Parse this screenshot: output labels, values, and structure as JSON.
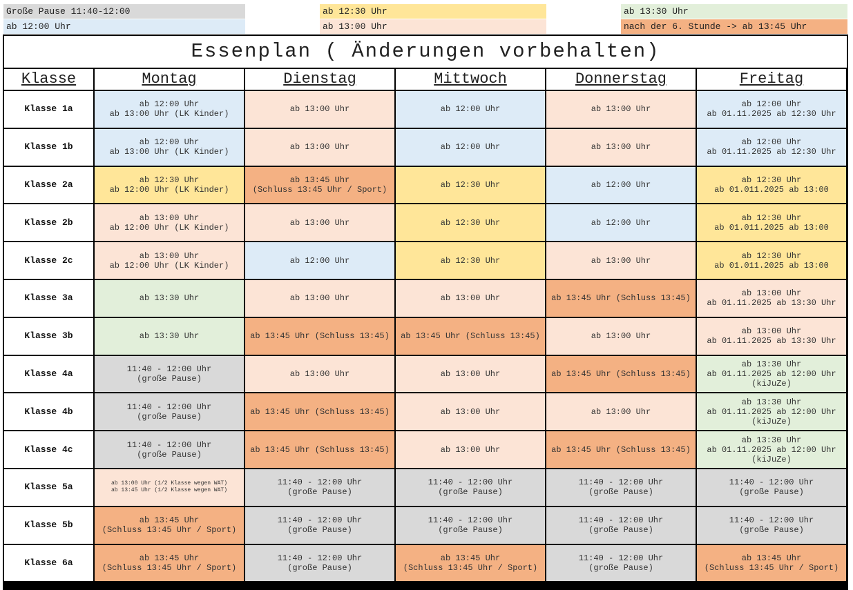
{
  "legend": [
    {
      "label": "Große Pause 11:40-12:00",
      "color": "#d9d9d9"
    },
    {
      "label": "ab 12:30 Uhr",
      "color": "#ffe699"
    },
    {
      "label": "ab 13:30 Uhr",
      "color": "#e2efda"
    },
    {
      "label": "ab 12:00 Uhr",
      "color": "#ddebf7"
    },
    {
      "label": "ab 13:00 Uhr",
      "color": "#fce4d6"
    },
    {
      "label": "nach der 6. Stunde -> ab 13:45 Uhr",
      "color": "#f4b183"
    }
  ],
  "table": {
    "title": "Essenplan ( Änderungen vorbehalten)",
    "header": [
      "Klasse",
      "Montag",
      "Dienstag",
      "Mittwoch",
      "Donnerstag",
      "Freitag"
    ],
    "rows": [
      {
        "klasse": "Klasse 1a",
        "cells": [
          {
            "lines": [
              "ab 12:00 Uhr",
              "ab 13:00 Uhr (LK Kinder)"
            ],
            "color": "#ddebf7"
          },
          {
            "lines": [
              "ab 13:00 Uhr"
            ],
            "color": "#fce4d6"
          },
          {
            "lines": [
              "ab 12:00 Uhr"
            ],
            "color": "#ddebf7"
          },
          {
            "lines": [
              "ab 13:00 Uhr"
            ],
            "color": "#fce4d6"
          },
          {
            "lines": [
              "ab 12:00 Uhr",
              "ab 01.11.2025 ab 12:30 Uhr"
            ],
            "color": "#ddebf7"
          }
        ]
      },
      {
        "klasse": "Klasse 1b",
        "cells": [
          {
            "lines": [
              "ab 12:00 Uhr",
              "ab 13:00 Uhr (LK Kinder)"
            ],
            "color": "#ddebf7"
          },
          {
            "lines": [
              "ab 13:00 Uhr"
            ],
            "color": "#fce4d6"
          },
          {
            "lines": [
              "ab 12:00 Uhr"
            ],
            "color": "#ddebf7"
          },
          {
            "lines": [
              "ab 13:00 Uhr"
            ],
            "color": "#fce4d6"
          },
          {
            "lines": [
              "ab 12:00 Uhr",
              "ab 01.11.2025 ab 12:30 Uhr"
            ],
            "color": "#ddebf7"
          }
        ]
      },
      {
        "klasse": "Klasse 2a",
        "cells": [
          {
            "lines": [
              "ab 12:30 Uhr",
              "ab 12:00 Uhr (LK Kinder)"
            ],
            "color": "#ffe699"
          },
          {
            "lines": [
              "ab 13:45 Uhr",
              "(Schluss 13:45 Uhr / Sport)"
            ],
            "color": "#f4b183"
          },
          {
            "lines": [
              "ab 12:30 Uhr"
            ],
            "color": "#ffe699"
          },
          {
            "lines": [
              "ab 12:00 Uhr"
            ],
            "color": "#ddebf7"
          },
          {
            "lines": [
              "ab 12:30 Uhr",
              "ab 01.011.2025 ab 13:00"
            ],
            "color": "#ffe699"
          }
        ]
      },
      {
        "klasse": "Klasse 2b",
        "cells": [
          {
            "lines": [
              "ab 13:00 Uhr",
              "ab 12:00 Uhr (LK Kinder)"
            ],
            "color": "#fce4d6"
          },
          {
            "lines": [
              "ab 13:00 Uhr"
            ],
            "color": "#fce4d6"
          },
          {
            "lines": [
              "ab 12:30 Uhr"
            ],
            "color": "#ffe699"
          },
          {
            "lines": [
              "ab 12:00 Uhr"
            ],
            "color": "#ddebf7"
          },
          {
            "lines": [
              "ab 12:30 Uhr",
              "ab 01.011.2025 ab 13:00"
            ],
            "color": "#ffe699"
          }
        ]
      },
      {
        "klasse": "Klasse 2c",
        "cells": [
          {
            "lines": [
              "ab 13:00 Uhr",
              "ab 12:00 Uhr (LK Kinder)"
            ],
            "color": "#fce4d6"
          },
          {
            "lines": [
              "ab 12:00 Uhr"
            ],
            "color": "#ddebf7"
          },
          {
            "lines": [
              "ab 12:30 Uhr"
            ],
            "color": "#ffe699"
          },
          {
            "lines": [
              "ab 13:00 Uhr"
            ],
            "color": "#fce4d6"
          },
          {
            "lines": [
              "ab 12:30 Uhr",
              "ab 01.011.2025 ab 13:00"
            ],
            "color": "#ffe699"
          }
        ]
      },
      {
        "klasse": "Klasse 3a",
        "cells": [
          {
            "lines": [
              "ab 13:30 Uhr"
            ],
            "color": "#e2efda"
          },
          {
            "lines": [
              "ab 13:00 Uhr"
            ],
            "color": "#fce4d6"
          },
          {
            "lines": [
              "ab 13:00 Uhr"
            ],
            "color": "#fce4d6"
          },
          {
            "lines": [
              "ab 13:45 Uhr (Schluss 13:45)"
            ],
            "color": "#f4b183"
          },
          {
            "lines": [
              "ab 13:00 Uhr",
              "ab 01.11.2025 ab 13:30 Uhr"
            ],
            "color": "#fce4d6"
          }
        ]
      },
      {
        "klasse": "Klasse 3b",
        "cells": [
          {
            "lines": [
              "ab 13:30 Uhr"
            ],
            "color": "#e2efda"
          },
          {
            "lines": [
              "ab 13:45 Uhr (Schluss 13:45)"
            ],
            "color": "#f4b183"
          },
          {
            "lines": [
              "ab 13:45 Uhr (Schluss 13:45)"
            ],
            "color": "#f4b183"
          },
          {
            "lines": [
              "ab 13:00 Uhr"
            ],
            "color": "#fce4d6"
          },
          {
            "lines": [
              "ab 13:00 Uhr",
              "ab 01.11.2025 ab 13:30 Uhr"
            ],
            "color": "#fce4d6"
          }
        ]
      },
      {
        "klasse": "Klasse 4a",
        "cells": [
          {
            "lines": [
              "11:40 - 12:00 Uhr",
              "(große Pause)"
            ],
            "color": "#d9d9d9"
          },
          {
            "lines": [
              "ab 13:00 Uhr"
            ],
            "color": "#fce4d6"
          },
          {
            "lines": [
              "ab 13:00 Uhr"
            ],
            "color": "#fce4d6"
          },
          {
            "lines": [
              "ab 13:45 Uhr (Schluss 13:45)"
            ],
            "color": "#f4b183"
          },
          {
            "lines": [
              "ab 13:30 Uhr",
              "ab 01.11.2025 ab 12:00 Uhr",
              "(kiJuZe)"
            ],
            "color": "#e2efda"
          }
        ]
      },
      {
        "klasse": "Klasse 4b",
        "cells": [
          {
            "lines": [
              "11:40 - 12:00 Uhr",
              "(große Pause)"
            ],
            "color": "#d9d9d9"
          },
          {
            "lines": [
              "ab 13:45 Uhr (Schluss 13:45)"
            ],
            "color": "#f4b183"
          },
          {
            "lines": [
              "ab 13:00 Uhr"
            ],
            "color": "#fce4d6"
          },
          {
            "lines": [
              "ab 13:00 Uhr"
            ],
            "color": "#fce4d6"
          },
          {
            "lines": [
              "ab 13:30 Uhr",
              "ab 01.11.2025 ab 12:00 Uhr",
              "(kiJuZe)"
            ],
            "color": "#e2efda"
          }
        ]
      },
      {
        "klasse": "Klasse 4c",
        "cells": [
          {
            "lines": [
              "11:40 - 12:00 Uhr",
              "(große Pause)"
            ],
            "color": "#d9d9d9"
          },
          {
            "lines": [
              "ab 13:45 Uhr (Schluss 13:45)"
            ],
            "color": "#f4b183"
          },
          {
            "lines": [
              "ab 13:00 Uhr"
            ],
            "color": "#fce4d6"
          },
          {
            "lines": [
              "ab 13:45 Uhr (Schluss 13:45)"
            ],
            "color": "#f4b183"
          },
          {
            "lines": [
              "ab 13:30 Uhr",
              "ab 01.11.2025 ab 12:00 Uhr",
              "(kiJuZe)"
            ],
            "color": "#e2efda"
          }
        ]
      },
      {
        "klasse": "Klasse 5a",
        "cells": [
          {
            "lines": [
              "ab 13:00 Uhr (1/2 Klasse wegen WAT)",
              "ab 13:45 Uhr (1/2 Klasse wegen WAT)"
            ],
            "color": "#fce4d6"
          },
          {
            "lines": [
              "11:40 - 12:00 Uhr",
              "(große Pause)"
            ],
            "color": "#d9d9d9"
          },
          {
            "lines": [
              "11:40 - 12:00 Uhr",
              "(große Pause)"
            ],
            "color": "#d9d9d9"
          },
          {
            "lines": [
              "11:40 - 12:00 Uhr",
              "(große Pause)"
            ],
            "color": "#d9d9d9"
          },
          {
            "lines": [
              "11:40 - 12:00 Uhr",
              "(große Pause)"
            ],
            "color": "#d9d9d9"
          }
        ]
      },
      {
        "klasse": "Klasse 5b",
        "cells": [
          {
            "lines": [
              "ab 13:45 Uhr",
              "(Schluss 13:45 Uhr / Sport)"
            ],
            "color": "#f4b183"
          },
          {
            "lines": [
              "11:40 - 12:00 Uhr",
              "(große Pause)"
            ],
            "color": "#d9d9d9"
          },
          {
            "lines": [
              "11:40 - 12:00 Uhr",
              "(große Pause)"
            ],
            "color": "#d9d9d9"
          },
          {
            "lines": [
              "11:40 - 12:00 Uhr",
              "(große Pause)"
            ],
            "color": "#d9d9d9"
          },
          {
            "lines": [
              "11:40 - 12:00 Uhr",
              "(große Pause)"
            ],
            "color": "#d9d9d9"
          }
        ]
      },
      {
        "klasse": "Klasse 6a",
        "cells": [
          {
            "lines": [
              "ab 13:45 Uhr",
              "(Schluss 13:45 Uhr / Sport)"
            ],
            "color": "#f4b183"
          },
          {
            "lines": [
              "11:40 - 12:00 Uhr",
              "(große Pause)"
            ],
            "color": "#d9d9d9"
          },
          {
            "lines": [
              "ab 13:45 Uhr",
              "(Schluss 13:45 Uhr / Sport)"
            ],
            "color": "#f4b183"
          },
          {
            "lines": [
              "11:40 - 12:00 Uhr",
              "(große Pause)"
            ],
            "color": "#d9d9d9"
          },
          {
            "lines": [
              "ab 13:45 Uhr",
              "(Schluss 13:45 Uhr / Sport)"
            ],
            "color": "#f4b183"
          }
        ]
      }
    ]
  }
}
